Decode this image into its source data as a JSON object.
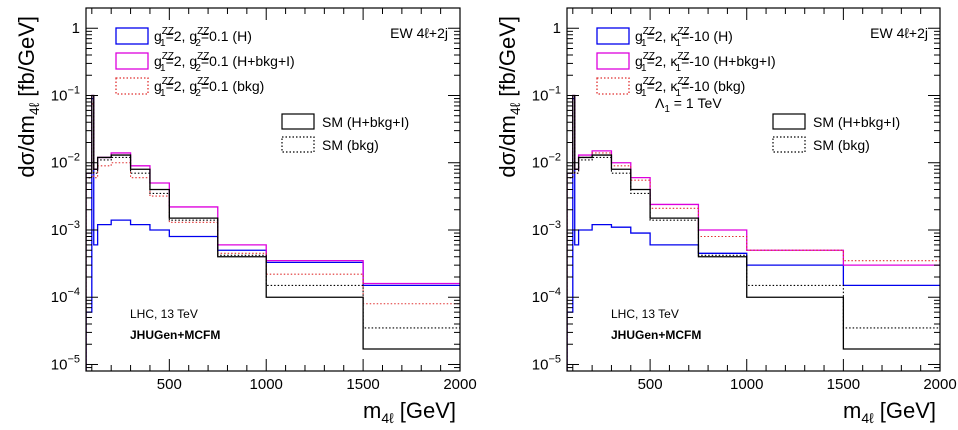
{
  "chart_data": [
    {
      "type": "line",
      "xlabel": "m4ℓ [GeV]",
      "ylabel": "dσ/dm4ℓ [fb/GeV]",
      "xlim": [
        70,
        2000
      ],
      "ylim": [
        8e-06,
        2
      ],
      "yscale": "log",
      "x_ticks": [
        "500",
        "1000",
        "1500",
        "2000"
      ],
      "y_ticks": [
        "1",
        "10⁻¹",
        "10⁻²",
        "10⁻³",
        "10⁻⁴",
        "10⁻⁵"
      ],
      "annotation_top": "EW 4ℓ+2j",
      "annotation_bottom": "LHC, 13 TeV",
      "annotation_bottom2": "JHUGen+MCFM",
      "bin_edges": [
        70,
        100,
        110,
        130,
        200,
        300,
        400,
        500,
        750,
        1000,
        1500,
        2000
      ],
      "series": [
        {
          "name": "g1ZZ=2, g2ZZ=0.1 (H)",
          "color": "#0000ee",
          "style": "solid",
          "values": [
            6e-05,
            0.09,
            0.0006,
            0.0012,
            0.0014,
            0.0012,
            0.001,
            0.0008,
            0.0005,
            0.00033,
            0.00015
          ]
        },
        {
          "name": "g1ZZ=2, g2ZZ=0.1 (H+bkg+I)",
          "color": "#dd00dd",
          "style": "solid",
          "values": [
            0.007,
            0.1,
            0.008,
            0.012,
            0.014,
            0.009,
            0.005,
            0.0022,
            0.0006,
            0.00035,
            0.00016
          ]
        },
        {
          "name": "g1ZZ=2, g2ZZ=0.1 (bkg)",
          "color": "#e03030",
          "style": "dotted",
          "values": [
            0.006,
            0.075,
            0.006,
            0.009,
            0.01,
            0.006,
            0.0032,
            0.0013,
            0.00045,
            0.00022,
            8e-05
          ]
        },
        {
          "name": "SM (H+bkg+I)",
          "color": "#000000",
          "style": "solid",
          "values": [
            0.007,
            0.1,
            0.008,
            0.012,
            0.013,
            0.008,
            0.004,
            0.0015,
            0.0004,
            0.0001,
            1.7e-05
          ]
        },
        {
          "name": "SM (bkg)",
          "color": "#000000",
          "style": "dotted",
          "values": [
            0.006,
            0.08,
            0.007,
            0.011,
            0.012,
            0.007,
            0.0035,
            0.0014,
            0.00042,
            0.00015,
            3.5e-05
          ]
        }
      ],
      "legend": [
        {
          "label": "g",
          "sub1": "1",
          "sup1": "ZZ",
          "mid": "=2, g",
          "sub2": "2",
          "sup2": "ZZ",
          "tail": "=0.1 (H)"
        },
        {
          "label": "g",
          "sub1": "1",
          "sup1": "ZZ",
          "mid": "=2, g",
          "sub2": "2",
          "sup2": "ZZ",
          "tail": "=0.1 (H+bkg+I)"
        },
        {
          "label": "g",
          "sub1": "1",
          "sup1": "ZZ",
          "mid": "=2, g",
          "sub2": "2",
          "sup2": "ZZ",
          "tail": "=0.1 (bkg)"
        },
        {
          "text": "SM (H+bkg+I)"
        },
        {
          "text": "SM (bkg)"
        }
      ]
    },
    {
      "type": "line",
      "xlabel": "m4ℓ [GeV]",
      "ylabel": "dσ/dm4ℓ [fb/GeV]",
      "xlim": [
        70,
        2000
      ],
      "ylim": [
        8e-06,
        2
      ],
      "yscale": "log",
      "x_ticks": [
        "500",
        "1000",
        "1500",
        "2000"
      ],
      "y_ticks": [
        "1",
        "10⁻¹",
        "10⁻²",
        "10⁻³",
        "10⁻⁴",
        "10⁻⁵"
      ],
      "annotation_top": "EW 4ℓ+2j",
      "annotation_lambda": "Λ1 = 1 TeV",
      "annotation_bottom": "LHC, 13 TeV",
      "annotation_bottom2": "JHUGen+MCFM",
      "bin_edges": [
        70,
        100,
        110,
        130,
        200,
        300,
        400,
        500,
        750,
        1000,
        1500,
        2000
      ],
      "series": [
        {
          "name": "g1ZZ=2, κ1ZZ=-10 (H)",
          "color": "#0000ee",
          "style": "solid",
          "values": [
            6e-05,
            0.09,
            0.0006,
            0.001,
            0.0012,
            0.0011,
            0.0009,
            0.0006,
            0.00045,
            0.0003,
            0.00015
          ]
        },
        {
          "name": "g1ZZ=2, κ1ZZ=-10 (H+bkg+I)",
          "color": "#dd00dd",
          "style": "solid",
          "values": [
            0.007,
            0.1,
            0.008,
            0.013,
            0.015,
            0.01,
            0.006,
            0.0024,
            0.001,
            0.0005,
            0.0003
          ]
        },
        {
          "name": "g1ZZ=2, κ1ZZ=-10 (bkg)",
          "color": "#e03030",
          "style": "dotted",
          "values": [
            0.006,
            0.08,
            0.007,
            0.012,
            0.014,
            0.009,
            0.0055,
            0.0021,
            0.0008,
            0.0005,
            0.00035
          ]
        },
        {
          "name": "SM (H+bkg+I)",
          "color": "#000000",
          "style": "solid",
          "values": [
            0.007,
            0.1,
            0.008,
            0.012,
            0.013,
            0.008,
            0.004,
            0.0015,
            0.0004,
            0.0001,
            1.7e-05
          ]
        },
        {
          "name": "SM (bkg)",
          "color": "#000000",
          "style": "dotted",
          "values": [
            0.006,
            0.08,
            0.007,
            0.011,
            0.012,
            0.007,
            0.0035,
            0.0014,
            0.00042,
            0.00015,
            3.5e-05
          ]
        }
      ],
      "legend": [
        {
          "label": "g",
          "sub1": "1",
          "sup1": "ZZ",
          "mid": "=2, κ",
          "sub2": "1",
          "sup2": "ZZ",
          "tail": "=-10 (H)"
        },
        {
          "label": "g",
          "sub1": "1",
          "sup1": "ZZ",
          "mid": "=2, κ",
          "sub2": "1",
          "sup2": "ZZ",
          "tail": "=-10 (H+bkg+I)"
        },
        {
          "label": "g",
          "sub1": "1",
          "sup1": "ZZ",
          "mid": "=2, κ",
          "sub2": "1",
          "sup2": "ZZ",
          "tail": "=-10 (bkg)"
        },
        {
          "text": "SM (H+bkg+I)"
        },
        {
          "text": "SM (bkg)"
        }
      ]
    }
  ]
}
